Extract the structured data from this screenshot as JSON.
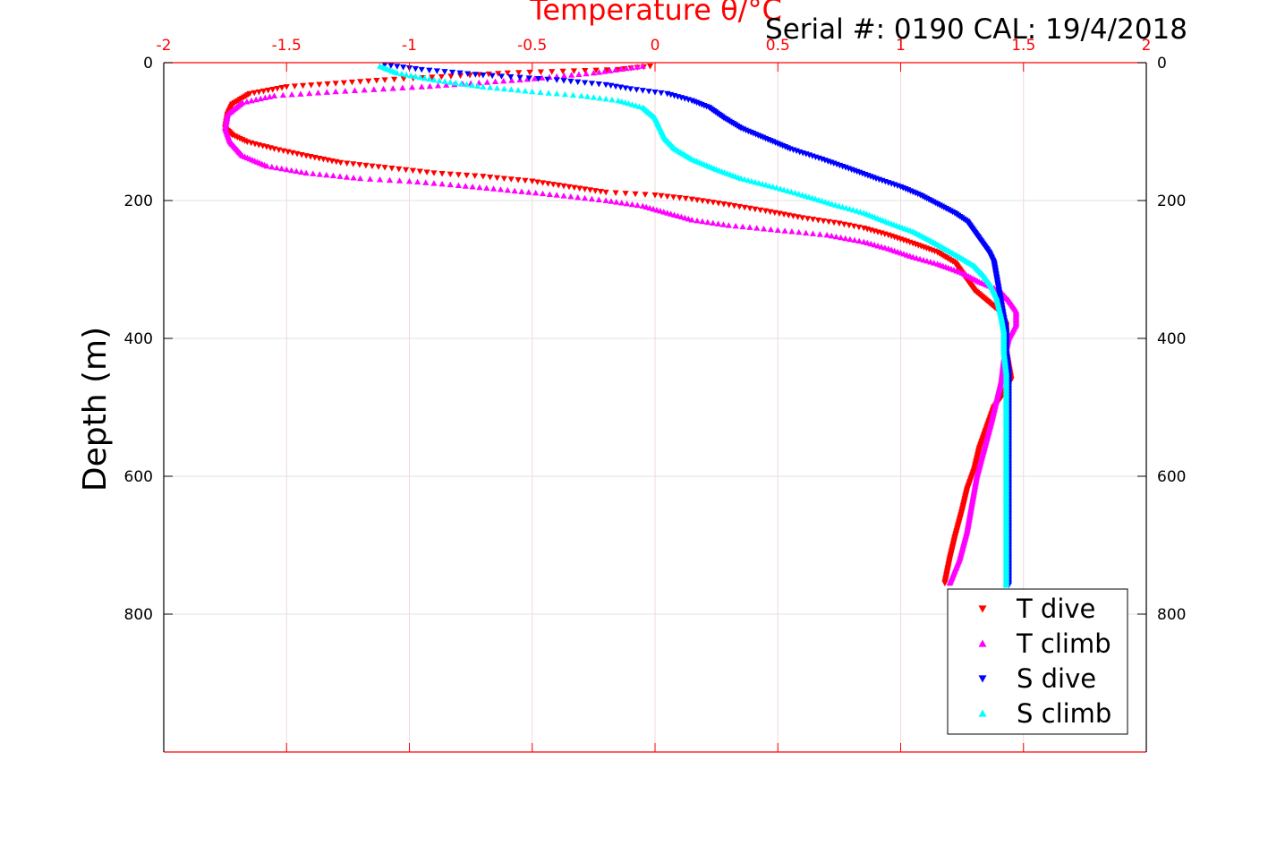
{
  "chart_data": {
    "type": "scatter",
    "title": "Temperature θ/°C",
    "annotation": "Serial #: 0190  CAL: 19/4/2018",
    "xlabel": "Temperature θ/°C",
    "ylabel": "Depth (m)",
    "xlim": [
      -2,
      2
    ],
    "ylim": [
      1000,
      0
    ],
    "y_reversed": true,
    "xticks": [
      "-2",
      "-1.5",
      "-1",
      "-0.5",
      "0",
      "0.5",
      "1",
      "1.5",
      "2"
    ],
    "yticks": [
      "0",
      "200",
      "400",
      "600",
      "800"
    ],
    "grid": true,
    "legend_position": "bottom-right",
    "colors": {
      "axis_x": "#ff0000",
      "axis_y": "#000000",
      "grid": "#e0e0e0"
    },
    "series": [
      {
        "name": "T dive",
        "color": "#ff0000",
        "marker": "triangle-down",
        "points": [
          [
            -0.02,
            5
          ],
          [
            -0.15,
            10
          ],
          [
            -0.6,
            15
          ],
          [
            -1.1,
            25
          ],
          [
            -1.5,
            35
          ],
          [
            -1.65,
            45
          ],
          [
            -1.72,
            60
          ],
          [
            -1.74,
            75
          ],
          [
            -1.75,
            95
          ],
          [
            -1.72,
            105
          ],
          [
            -1.66,
            115
          ],
          [
            -1.55,
            125
          ],
          [
            -1.42,
            135
          ],
          [
            -1.28,
            145
          ],
          [
            -1.1,
            152
          ],
          [
            -0.9,
            160
          ],
          [
            -0.7,
            165
          ],
          [
            -0.5,
            172
          ],
          [
            -0.35,
            180
          ],
          [
            -0.2,
            188
          ],
          [
            0.0,
            192
          ],
          [
            0.15,
            198
          ],
          [
            0.28,
            205
          ],
          [
            0.45,
            215
          ],
          [
            0.6,
            225
          ],
          [
            0.75,
            233
          ],
          [
            0.85,
            240
          ],
          [
            0.95,
            250
          ],
          [
            1.05,
            262
          ],
          [
            1.15,
            275
          ],
          [
            1.22,
            290
          ],
          [
            1.26,
            310
          ],
          [
            1.3,
            330
          ],
          [
            1.35,
            345
          ],
          [
            1.4,
            360
          ],
          [
            1.43,
            380
          ],
          [
            1.43,
            400
          ],
          [
            1.43,
            420
          ],
          [
            1.44,
            440
          ],
          [
            1.45,
            460
          ],
          [
            1.42,
            480
          ],
          [
            1.38,
            500
          ],
          [
            1.35,
            530
          ],
          [
            1.32,
            560
          ],
          [
            1.3,
            590
          ],
          [
            1.27,
            620
          ],
          [
            1.25,
            650
          ],
          [
            1.22,
            690
          ],
          [
            1.2,
            720
          ],
          [
            1.18,
            755
          ]
        ]
      },
      {
        "name": "T climb",
        "color": "#ff00ff",
        "marker": "triangle-up",
        "points": [
          [
            -0.05,
            5
          ],
          [
            -0.25,
            15
          ],
          [
            -0.55,
            25
          ],
          [
            -0.95,
            35
          ],
          [
            -1.3,
            42
          ],
          [
            -1.55,
            48
          ],
          [
            -1.68,
            58
          ],
          [
            -1.74,
            75
          ],
          [
            -1.75,
            95
          ],
          [
            -1.73,
            115
          ],
          [
            -1.68,
            135
          ],
          [
            -1.58,
            150
          ],
          [
            -1.42,
            160
          ],
          [
            -1.2,
            168
          ],
          [
            -1.0,
            172
          ],
          [
            -0.8,
            178
          ],
          [
            -0.6,
            185
          ],
          [
            -0.4,
            192
          ],
          [
            -0.2,
            200
          ],
          [
            -0.05,
            208
          ],
          [
            0.05,
            218
          ],
          [
            0.15,
            228
          ],
          [
            0.3,
            236
          ],
          [
            0.5,
            243
          ],
          [
            0.7,
            250
          ],
          [
            0.85,
            260
          ],
          [
            0.95,
            270
          ],
          [
            1.05,
            282
          ],
          [
            1.15,
            292
          ],
          [
            1.25,
            305
          ],
          [
            1.32,
            318
          ],
          [
            1.4,
            330
          ],
          [
            1.44,
            345
          ],
          [
            1.47,
            360
          ],
          [
            1.47,
            380
          ],
          [
            1.44,
            400
          ],
          [
            1.42,
            430
          ],
          [
            1.41,
            460
          ],
          [
            1.39,
            490
          ],
          [
            1.37,
            520
          ],
          [
            1.34,
            560
          ],
          [
            1.31,
            600
          ],
          [
            1.29,
            640
          ],
          [
            1.27,
            680
          ],
          [
            1.24,
            720
          ],
          [
            1.2,
            755
          ]
        ]
      },
      {
        "name": "S dive",
        "color": "#0000ff",
        "marker": "triangle-down",
        "points": [
          [
            -1.1,
            3
          ],
          [
            -0.95,
            10
          ],
          [
            -0.7,
            18
          ],
          [
            -0.4,
            25
          ],
          [
            -0.2,
            32
          ],
          [
            -0.1,
            38
          ],
          [
            0.05,
            45
          ],
          [
            0.15,
            55
          ],
          [
            0.22,
            65
          ],
          [
            0.28,
            80
          ],
          [
            0.35,
            95
          ],
          [
            0.45,
            110
          ],
          [
            0.55,
            125
          ],
          [
            0.68,
            140
          ],
          [
            0.8,
            155
          ],
          [
            0.9,
            168
          ],
          [
            1.0,
            180
          ],
          [
            1.08,
            192
          ],
          [
            1.15,
            205
          ],
          [
            1.22,
            218
          ],
          [
            1.27,
            230
          ],
          [
            1.3,
            245
          ],
          [
            1.33,
            260
          ],
          [
            1.36,
            275
          ],
          [
            1.38,
            290
          ],
          [
            1.39,
            310
          ],
          [
            1.4,
            330
          ],
          [
            1.41,
            350
          ],
          [
            1.42,
            370
          ],
          [
            1.43,
            390
          ],
          [
            1.43,
            420
          ],
          [
            1.44,
            450
          ],
          [
            1.44,
            480
          ],
          [
            1.44,
            520
          ],
          [
            1.44,
            560
          ],
          [
            1.44,
            600
          ],
          [
            1.44,
            640
          ],
          [
            1.44,
            680
          ],
          [
            1.44,
            720
          ],
          [
            1.44,
            758
          ]
        ]
      },
      {
        "name": "S climb",
        "color": "#00ffff",
        "marker": "triangle-up",
        "points": [
          [
            -1.12,
            5
          ],
          [
            -1.05,
            15
          ],
          [
            -0.9,
            25
          ],
          [
            -0.7,
            35
          ],
          [
            -0.5,
            42
          ],
          [
            -0.3,
            48
          ],
          [
            -0.15,
            55
          ],
          [
            -0.05,
            65
          ],
          [
            0.0,
            80
          ],
          [
            0.02,
            95
          ],
          [
            0.04,
            110
          ],
          [
            0.08,
            125
          ],
          [
            0.15,
            140
          ],
          [
            0.25,
            155
          ],
          [
            0.35,
            168
          ],
          [
            0.48,
            180
          ],
          [
            0.6,
            192
          ],
          [
            0.72,
            205
          ],
          [
            0.85,
            218
          ],
          [
            0.95,
            232
          ],
          [
            1.05,
            245
          ],
          [
            1.12,
            258
          ],
          [
            1.18,
            270
          ],
          [
            1.24,
            282
          ],
          [
            1.3,
            295
          ],
          [
            1.34,
            310
          ],
          [
            1.37,
            325
          ],
          [
            1.39,
            340
          ],
          [
            1.4,
            355
          ],
          [
            1.41,
            370
          ],
          [
            1.42,
            390
          ],
          [
            1.42,
            420
          ],
          [
            1.43,
            450
          ],
          [
            1.43,
            480
          ],
          [
            1.43,
            520
          ],
          [
            1.43,
            560
          ],
          [
            1.43,
            600
          ],
          [
            1.43,
            640
          ],
          [
            1.43,
            680
          ],
          [
            1.43,
            720
          ],
          [
            1.43,
            758
          ]
        ]
      }
    ]
  }
}
